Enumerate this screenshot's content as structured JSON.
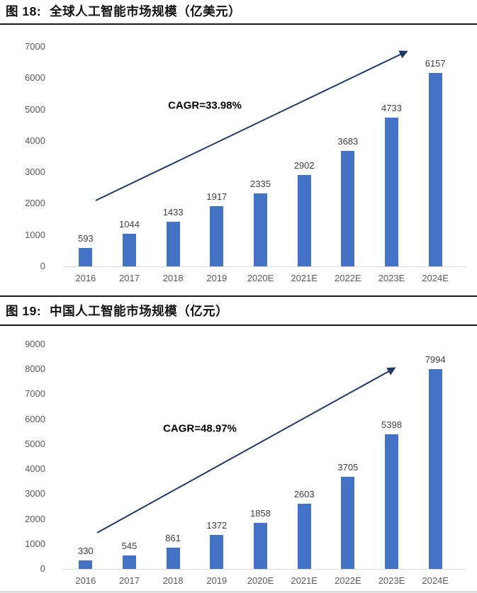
{
  "figures": [
    {
      "label": "图 18:",
      "title": "全球人工智能市场规模（亿美元）"
    },
    {
      "label": "图 19:",
      "title": "中国人工智能市场规模（亿元）"
    }
  ],
  "chart_data": [
    {
      "type": "bar",
      "title": "图 18: 全球人工智能市场规模（亿美元）",
      "categories": [
        "2016",
        "2017",
        "2018",
        "2019",
        "2020E",
        "2021E",
        "2022E",
        "2023E",
        "2024E"
      ],
      "values": [
        593,
        1044,
        1433,
        1917,
        2335,
        2902,
        3683,
        4733,
        6157
      ],
      "ylim": [
        0,
        7000
      ],
      "ystep": 1000,
      "annotation": "CAGR=33.98%",
      "bar_color": "#4472c4",
      "arrow_color": "#1f3864",
      "grid": false,
      "legend": "none",
      "xlabel": "",
      "ylabel": ""
    },
    {
      "type": "bar",
      "title": "图 19: 中国人工智能市场规模（亿元）",
      "categories": [
        "2016",
        "2017",
        "2018",
        "2019",
        "2020E",
        "2021E",
        "2022E",
        "2023E",
        "2024E"
      ],
      "values": [
        330,
        545,
        861,
        1372,
        1858,
        2603,
        3705,
        5398,
        7994
      ],
      "ylim": [
        0,
        9000
      ],
      "ystep": 1000,
      "annotation": "CAGR=48.97%",
      "bar_color": "#4472c4",
      "arrow_color": "#1f3864",
      "grid": false,
      "legend": "none",
      "xlabel": "",
      "ylabel": ""
    }
  ]
}
